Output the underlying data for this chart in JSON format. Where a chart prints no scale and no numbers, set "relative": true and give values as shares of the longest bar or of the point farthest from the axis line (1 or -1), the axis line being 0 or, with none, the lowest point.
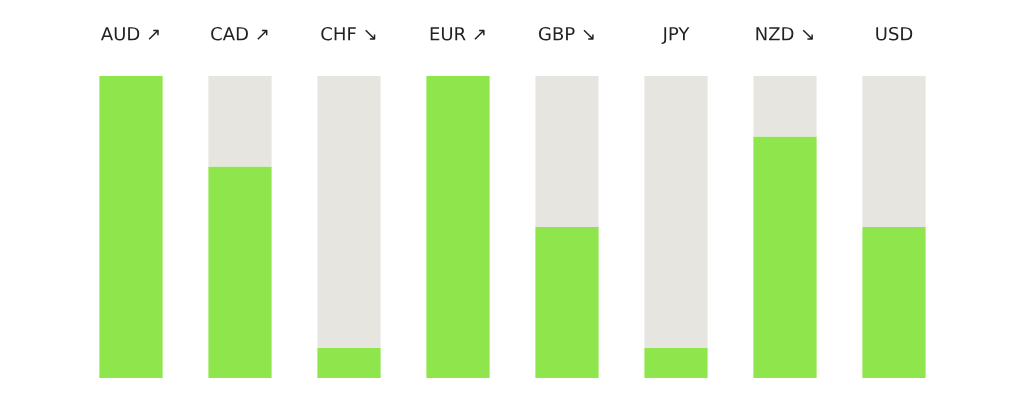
{
  "chart_data": {
    "type": "bar",
    "relative": true,
    "stacked": true,
    "tick_labels": "x",
    "categories": [
      "AUD ↗",
      "CAD ↗",
      "CHF ↘",
      "EUR ↗",
      "GBP ↘",
      "JPY",
      "NZD ↘",
      "USD"
    ],
    "series": [
      {
        "color": "#8ee64c",
        "values": [
          1,
          0.7,
          0.1,
          1,
          0.5,
          0.1,
          0.8,
          0.5
        ]
      },
      {
        "color": "#e6e5e0",
        "values": [
          0,
          0.3,
          0.9,
          0,
          0.5,
          0.9,
          0.2,
          0.5
        ]
      }
    ]
  }
}
